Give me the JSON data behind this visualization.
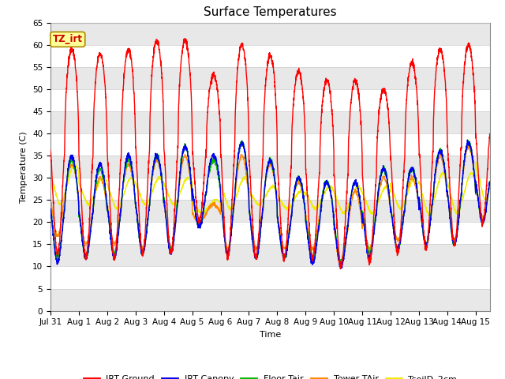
{
  "title": "Surface Temperatures",
  "xlabel": "Time",
  "ylabel": "Temperature (C)",
  "ylim": [
    0,
    65
  ],
  "yticks": [
    0,
    5,
    10,
    15,
    20,
    25,
    30,
    35,
    40,
    45,
    50,
    55,
    60,
    65
  ],
  "x_tick_labels": [
    "Jul 31",
    "Aug 1",
    "Aug 2",
    "Aug 3",
    "Aug 4",
    "Aug 5",
    "Aug 6",
    "Aug 7",
    "Aug 8",
    "Aug 9",
    "Aug 10",
    "Aug 11",
    "Aug 12",
    "Aug 13",
    "Aug 14",
    "Aug 15"
  ],
  "legend_entries": [
    {
      "label": "IRT Ground",
      "color": "#FF0000"
    },
    {
      "label": "IRT Canopy",
      "color": "#0000EE"
    },
    {
      "label": "Floor Tair",
      "color": "#00BB00"
    },
    {
      "label": "Tower TAir",
      "color": "#FF8800"
    },
    {
      "label": "TsoilD_2cm",
      "color": "#EEEE00"
    }
  ],
  "annotation_text": "TZ_irt",
  "annotation_bg": "#FFFF99",
  "annotation_border": "#AA8800",
  "fig_facecolor": "#FFFFFF",
  "plot_facecolor": "#FFFFFF",
  "title_fontsize": 11,
  "axis_label_fontsize": 8,
  "tick_fontsize": 7.5
}
